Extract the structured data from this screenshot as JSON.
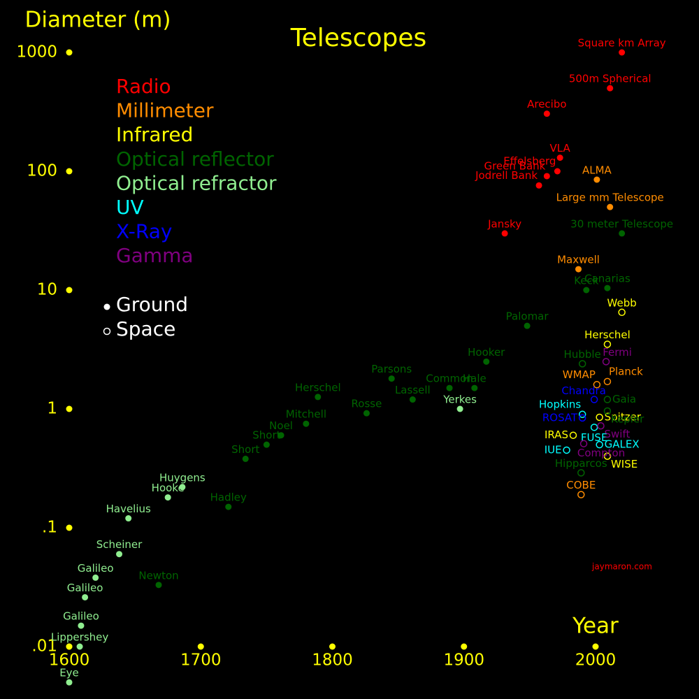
{
  "chart_data": {
    "type": "scatter",
    "title": "Telescopes",
    "y_label": "Diameter (m)",
    "x_label": "Year",
    "credit": "jaymaron.com",
    "yscale": "log",
    "xlim": [
      1600,
      2030
    ],
    "ylim": [
      0.004,
      1000
    ],
    "xticks": [
      1600,
      1700,
      1800,
      1900,
      2000
    ],
    "yticks": [
      1000,
      100,
      10,
      1,
      {
        "value": 0.1,
        "label": ".1"
      },
      {
        "value": 0.01,
        "label": ".01"
      }
    ],
    "tick_color": "#ffff00",
    "marker_legend": [
      {
        "label": "Ground",
        "space": false
      },
      {
        "label": "Space",
        "space": true
      }
    ],
    "series": [
      {
        "name": "Radio",
        "color": "#ff0000",
        "labels": [
          "Square km Array",
          "500m Spherical",
          "Arecibo",
          "VLA",
          "Effelsberg",
          "Green Bank",
          "Jodrell Bank",
          "Jansky"
        ],
        "x": [
          2020,
          2011,
          1963,
          1973,
          1971,
          1963,
          1957,
          1931
        ],
        "values": [
          1000,
          500,
          305,
          130,
          100,
          91,
          76,
          30
        ],
        "space": [
          false,
          false,
          false,
          false,
          false,
          false,
          false,
          false
        ]
      },
      {
        "name": "Millimeter",
        "color": "#ff8c00",
        "labels": [
          "ALMA",
          "Large mm Telescope",
          "Maxwell",
          "WMAP",
          "Planck",
          "COBE"
        ],
        "x": [
          2001,
          2011,
          1987,
          2001,
          2009,
          1989
        ],
        "values": [
          85,
          50,
          15,
          1.6,
          1.7,
          0.19
        ],
        "space": [
          false,
          false,
          false,
          true,
          true,
          true
        ]
      },
      {
        "name": "Infrared",
        "color": "#ffff00",
        "labels": [
          "Webb",
          "Herschel",
          "Spitzer",
          "IRAS",
          "WISE"
        ],
        "x": [
          2020,
          2009,
          2003,
          1983,
          2009
        ],
        "values": [
          6.5,
          3.5,
          0.85,
          0.6,
          0.4
        ],
        "space": [
          true,
          true,
          true,
          true,
          true
        ]
      },
      {
        "name": "Optical reflector",
        "color": "#006400",
        "labels": [
          "30 meter Telescope",
          "Canarias",
          "Keck",
          "Palomar",
          "Hooker",
          "Parsons",
          "Common",
          "Hale",
          "Lassell",
          "Herschel",
          "Rosse",
          "Mitchell",
          "Noel",
          "Short",
          "Short",
          "Hadley",
          "Newton",
          "Hubble",
          "Gaia",
          "Kepler",
          "Hipparcos"
        ],
        "x": [
          2020,
          2009,
          1993,
          1948,
          1917,
          1845,
          1889,
          1908,
          1861,
          1789,
          1826,
          1780,
          1761,
          1750,
          1734,
          1721,
          1668,
          1990,
          2009,
          2009,
          1989
        ],
        "values": [
          30,
          10.4,
          10,
          5,
          2.5,
          1.8,
          1.5,
          1.5,
          1.2,
          1.26,
          0.92,
          0.75,
          0.6,
          0.5,
          0.38,
          0.15,
          0.033,
          2.4,
          1.2,
          0.96,
          0.29
        ],
        "space": [
          false,
          false,
          false,
          false,
          false,
          false,
          false,
          false,
          false,
          false,
          false,
          false,
          false,
          false,
          false,
          false,
          false,
          true,
          true,
          true,
          true
        ]
      },
      {
        "name": "Optical refractor",
        "color": "#90ee90",
        "labels": [
          "Yerkes",
          "Huygens",
          "Hooke",
          "Havelius",
          "Scheiner",
          "Galileo",
          "Galileo",
          "Galileo",
          "Lippershey",
          "Eye"
        ],
        "x": [
          1897,
          1686,
          1675,
          1645,
          1638,
          1620,
          1612,
          1609,
          1608,
          1600
        ],
        "values": [
          1,
          0.22,
          0.18,
          0.12,
          0.06,
          0.038,
          0.026,
          0.015,
          0.01,
          0.005
        ],
        "space": [
          false,
          false,
          false,
          false,
          false,
          false,
          false,
          false,
          false,
          false
        ]
      },
      {
        "name": "UV",
        "color": "#00ffff",
        "labels": [
          "Hopkins",
          "FUSE",
          "GALEX",
          "IUE"
        ],
        "x": [
          1990,
          1999,
          2003,
          1978
        ],
        "values": [
          0.9,
          0.7,
          0.5,
          0.45
        ],
        "space": [
          true,
          true,
          true,
          true
        ]
      },
      {
        "name": "X-Ray",
        "color": "#0000ff",
        "labels": [
          "Chandra",
          "ROSAT"
        ],
        "x": [
          1999,
          1990
        ],
        "values": [
          1.2,
          0.84
        ],
        "space": [
          true,
          true
        ]
      },
      {
        "name": "Gamma",
        "color": "#800080",
        "labels": [
          "Fermi",
          "Swift",
          "Compton"
        ],
        "x": [
          2008,
          2004,
          1991
        ],
        "values": [
          2.5,
          0.72,
          0.51
        ],
        "space": [
          true,
          true,
          true
        ]
      }
    ]
  }
}
